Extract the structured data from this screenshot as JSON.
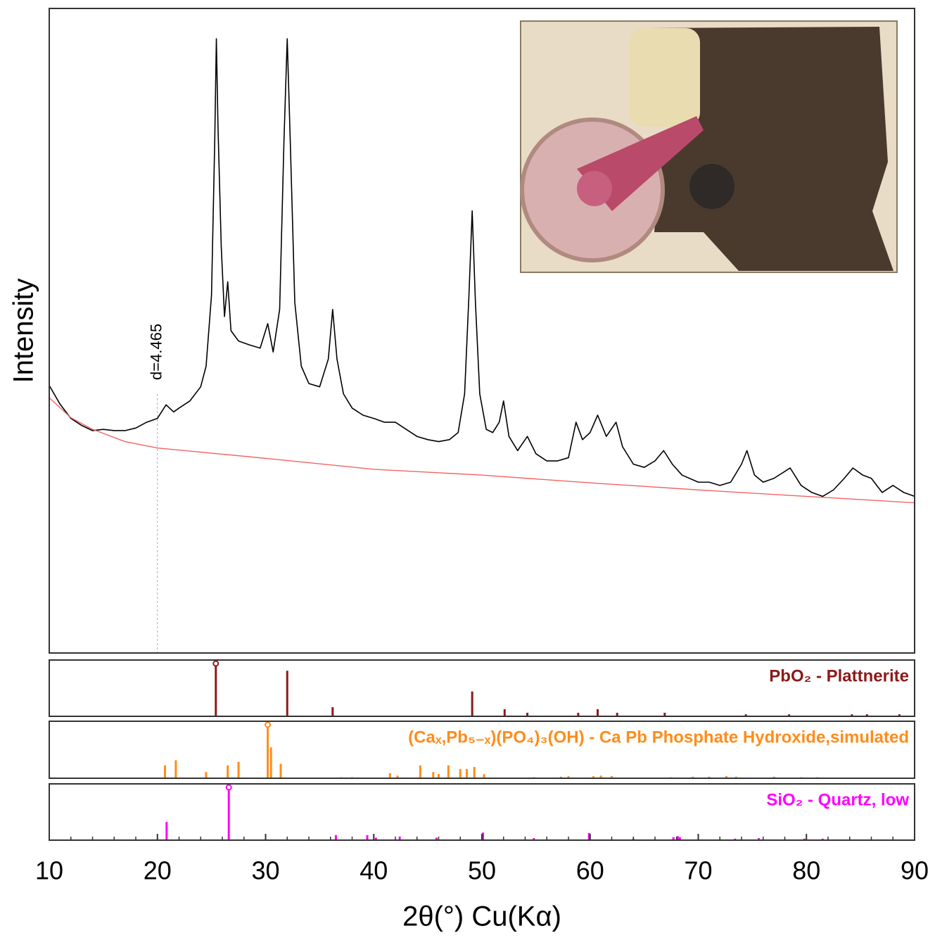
{
  "chart_data": [
    {
      "type": "line",
      "ylabel": "Intensity",
      "xlim": [
        10,
        90
      ],
      "ylim": [
        0,
        100
      ],
      "annotation": {
        "text": "d=4.465",
        "x": 20
      },
      "series": [
        {
          "color": "#000000",
          "x": [
            10,
            11,
            12,
            13,
            14,
            15,
            16,
            17,
            18,
            19,
            20,
            20.8,
            21.5,
            22,
            23,
            24,
            24.5,
            25,
            25.3,
            25.45,
            25.6,
            25.9,
            26.2,
            26.5,
            26.8,
            27.5,
            28.5,
            29.5,
            30.2,
            30.7,
            31.3,
            31.7,
            32.0,
            32.3,
            32.7,
            33.3,
            34,
            35,
            35.8,
            36.2,
            36.6,
            37.2,
            38,
            39,
            40,
            41,
            42,
            43,
            44,
            45,
            46,
            47,
            47.8,
            48.4,
            48.8,
            49.1,
            49.4,
            49.8,
            50.4,
            51,
            51.6,
            52.0,
            52.5,
            53.3,
            54.2,
            55,
            56,
            57,
            58,
            58.7,
            59.3,
            60,
            60.7,
            61.5,
            62.4,
            63,
            64,
            65,
            66,
            66.8,
            67.6,
            68.5,
            70,
            71,
            72,
            73,
            74,
            74.5,
            75.2,
            76,
            77,
            78.5,
            79.5,
            80.5,
            81.5,
            82.5,
            83.5,
            84.3,
            85.2,
            86,
            87,
            88,
            89,
            90
          ],
          "values": [
            41.5,
            38.6,
            36.4,
            35.3,
            34.5,
            34.7,
            34.5,
            34.5,
            34.9,
            35.8,
            36.4,
            38.5,
            37.4,
            38.0,
            39.1,
            41.3,
            44.5,
            55.5,
            79.5,
            95.3,
            81.7,
            63.1,
            52.2,
            57.6,
            50.0,
            48.4,
            47.8,
            47.3,
            51.1,
            46.7,
            53.3,
            79.5,
            95.3,
            78.4,
            54.4,
            44.5,
            41.8,
            41.3,
            45.6,
            53.3,
            45.6,
            40.2,
            38.0,
            36.9,
            36.4,
            35.8,
            35.8,
            34.7,
            33.6,
            33.1,
            32.8,
            33.1,
            34.2,
            40.2,
            55.5,
            68.6,
            54.4,
            40.2,
            34.7,
            34.2,
            35.8,
            39.1,
            33.6,
            31.4,
            33.6,
            30.9,
            29.8,
            29.8,
            30.3,
            35.8,
            33.1,
            34.2,
            36.9,
            33.6,
            35.8,
            32.0,
            29.3,
            28.8,
            29.8,
            31.4,
            29.3,
            27.6,
            26.5,
            26.5,
            26.0,
            26.5,
            29.3,
            31.4,
            27.6,
            26.5,
            27.1,
            28.7,
            26.0,
            24.9,
            24.3,
            25.3,
            27.1,
            28.7,
            27.6,
            27.1,
            24.9,
            26.0,
            24.9,
            24.3
          ]
        },
        {
          "color": "#f26464",
          "x": [
            10,
            12,
            14,
            17,
            20,
            30,
            40,
            50,
            60,
            70,
            80,
            90
          ],
          "values": [
            39.6,
            36.5,
            34.7,
            32.8,
            31.8,
            30.2,
            28.5,
            27.6,
            26.4,
            25.3,
            24.3,
            23.3
          ]
        }
      ]
    },
    {
      "type": "stem",
      "label": "PbO₂ - Plattnerite",
      "color": "#8b1a1a",
      "xlim": [
        10,
        90
      ],
      "ylim": [
        0,
        100
      ],
      "x": [
        25.4,
        32.0,
        36.2,
        49.1,
        52.1,
        54.2,
        58.9,
        60.7,
        62.5,
        66.9,
        74.4,
        78.4,
        84.2,
        85.6,
        88.6
      ],
      "values": [
        100,
        90,
        18,
        49,
        14,
        7,
        7,
        14,
        7,
        7,
        4,
        4,
        4,
        4,
        4
      ]
    },
    {
      "type": "stem",
      "label": "(Caₓ,Pb₅₋ₓ)(PO₄)₃(OH) - Ca Pb Phosphate Hydroxide,simulated",
      "color": "#ff8c1a",
      "xlim": [
        10,
        90
      ],
      "ylim": [
        0,
        100
      ],
      "x": [
        20.7,
        21.7,
        24.5,
        26.5,
        27.5,
        30.2,
        30.5,
        31.4,
        37,
        38,
        41.5,
        42.2,
        44.3,
        45.5,
        46,
        46.9,
        48,
        48.6,
        49.3,
        50.2,
        54.8,
        57.3,
        58,
        60.3,
        61,
        62,
        67.5,
        69.5,
        71,
        72.6,
        73.5,
        77,
        79.5,
        81
      ],
      "values": [
        25,
        35,
        12,
        25,
        32,
        100,
        60,
        28,
        2,
        2,
        10,
        5,
        25,
        12,
        8,
        25,
        18,
        18,
        22,
        8,
        2,
        3,
        4,
        4,
        5,
        4,
        2,
        3,
        3,
        4,
        3,
        3,
        2,
        2
      ]
    },
    {
      "type": "stem",
      "label": "SiO₂ - Quartz, low",
      "color": "#ff00ff",
      "xlim": [
        10,
        90
      ],
      "ylim": [
        0,
        100
      ],
      "xlabel": "2θ(°) Cu(Kα)",
      "xticks": [
        10,
        20,
        30,
        40,
        50,
        60,
        70,
        80,
        90
      ],
      "xminorticks": [
        12,
        14,
        16,
        18,
        22,
        24,
        26,
        28,
        32,
        34,
        36,
        38,
        42,
        44,
        46,
        48,
        52,
        54,
        56,
        58,
        62,
        64,
        66,
        68,
        72,
        74,
        76,
        78,
        82,
        84,
        86,
        88
      ],
      "x": [
        20.85,
        26.6,
        36.5,
        39.4,
        40.2,
        42.4,
        45.8,
        50.1,
        54.8,
        59.9,
        64,
        67.7,
        68.1,
        68.3,
        73.4,
        75.6,
        79.8,
        81.5
      ],
      "values": [
        36,
        100,
        10,
        10,
        5,
        7,
        5,
        15,
        4,
        14,
        3,
        6,
        8,
        6,
        3,
        4,
        3,
        3
      ]
    }
  ]
}
